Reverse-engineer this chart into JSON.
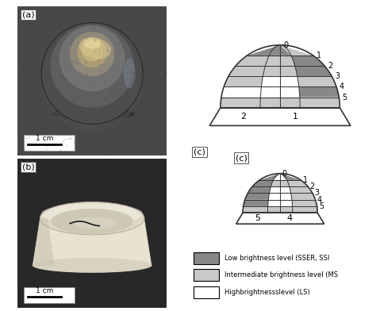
{
  "fig_width": 4.74,
  "fig_height": 3.92,
  "background_color": "#ffffff",
  "label_a": "(a)",
  "label_b": "(b)",
  "label_c": "(c)",
  "scale_bar_label": "1 cm",
  "row_numbers": [
    "0",
    "1",
    "2",
    "3",
    "4",
    "5"
  ],
  "col_numbers_top": [
    "2",
    "1"
  ],
  "col_numbers_bottom": [
    "5",
    "4"
  ],
  "legend_items": [
    {
      "color": "#888888",
      "label": "Low brightness level (SSER, SSI"
    },
    {
      "color": "#c8c8c8",
      "label": "Intermediate brightness level (MS"
    },
    {
      "color": "#ffffff",
      "label": "Highbrightnessslevel (LS)"
    }
  ],
  "dark_gray": "#888888",
  "light_gray": "#c8c8c8",
  "white": "#ffffff",
  "outline_color": "#333333",
  "photo_bg_a": "#404040",
  "photo_bg_b": "#303030",
  "top_colors": [
    [
      "dark",
      "dark",
      "light"
    ],
    [
      "light",
      "light",
      "dark"
    ],
    [
      "light",
      "light",
      "dark"
    ],
    [
      "light",
      "white",
      "light"
    ],
    [
      "white",
      "white",
      "dark"
    ],
    [
      "light",
      "light",
      "light"
    ]
  ],
  "bot_colors": [
    [
      "dark",
      "white",
      "dark"
    ],
    [
      "dark",
      "light",
      "light"
    ],
    [
      "dark",
      "white",
      "light"
    ],
    [
      "dark",
      "white",
      "light"
    ],
    [
      "dark",
      "white",
      "light"
    ],
    [
      "light",
      "light",
      "light"
    ]
  ]
}
